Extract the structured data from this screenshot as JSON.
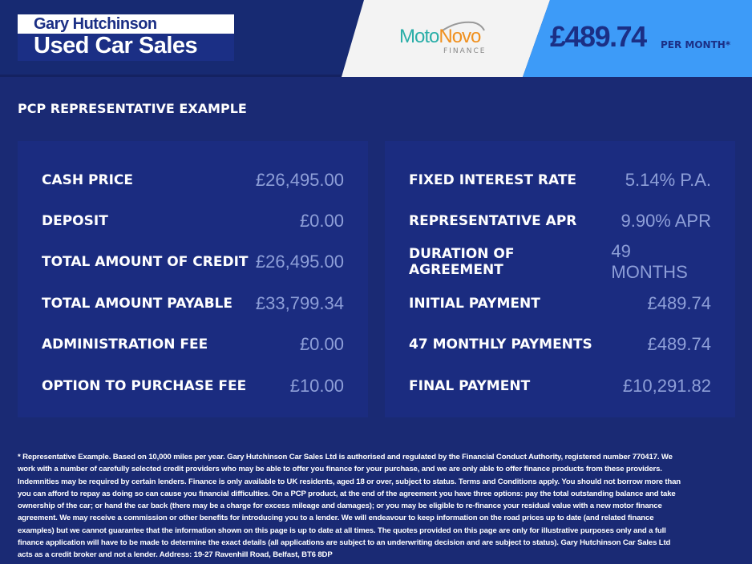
{
  "header": {
    "dealer_line1": "Gary Hutchinson",
    "dealer_line2": "Used Car Sales",
    "finance_logo_a": "Moto",
    "finance_logo_b": "Novo",
    "finance_logo_sub": "FINANCE",
    "monthly_price": "£489.74",
    "monthly_unit": "PER MONTH*",
    "colors": {
      "header": "#172a72",
      "price_bg": "#3d9bf8",
      "logo_teal": "#2aaea8",
      "logo_orange": "#f0901e"
    }
  },
  "title": "PCP REPRESENTATIVE EXAMPLE",
  "left_panel": [
    {
      "label": "CASH PRICE",
      "value": "£26,495.00"
    },
    {
      "label": "DEPOSIT",
      "value": "£0.00"
    },
    {
      "label": "TOTAL AMOUNT OF CREDIT",
      "value": "£26,495.00"
    },
    {
      "label": "TOTAL AMOUNT PAYABLE",
      "value": "£33,799.34"
    },
    {
      "label": "ADMINISTRATION FEE",
      "value": "£0.00"
    },
    {
      "label": "OPTION TO PURCHASE FEE",
      "value": "£10.00"
    }
  ],
  "right_panel": [
    {
      "label": "FIXED INTEREST RATE",
      "value": "5.14% P.A."
    },
    {
      "label": "REPRESENTATIVE APR",
      "value": "9.90% APR"
    },
    {
      "label": "DURATION OF AGREEMENT",
      "value": "49 MONTHS"
    },
    {
      "label": "INITIAL PAYMENT",
      "value": "£489.74"
    },
    {
      "label": "47 MONTHLY PAYMENTS",
      "value": "£489.74"
    },
    {
      "label": "FINAL PAYMENT",
      "value": "£10,291.82"
    }
  ],
  "footer": "* Representative Example. Based on 10,000 miles per year. Gary Hutchinson Car Sales Ltd is authorised and regulated by the Financial Conduct Authority, registered number 770417. We work with a number of carefully selected credit providers who may be able to offer you finance for your purchase, and we are only able to offer finance products from these providers. Indemnities may be required by certain lenders. Finance is only available to UK residents, aged 18 or over, subject to status. Terms and Conditions apply. You should not borrow more than you can afford to repay as doing so can cause you financial difficulties. On a PCP product, at the end of the agreement you have three options: pay the total outstanding balance and take ownership of the car; or hand the car back (there may be a charge for excess mileage and damages); or you may be eligible to re-finance your residual value with a new motor finance agreement. We may receive a commission or other benefits for introducing you to a lender. We will endeavour to keep information on the road prices up to date (and related finance examples) but we cannot guarantee that the information shown on this page is up to date at all times. The quotes provided on this page are only for illustrative purposes only and a full finance application will have to be made to determine the exact details (all applications are subject to an underwriting decision and are subject to status). Gary Hutchinson Car Sales Ltd acts as a credit broker and not a lender. Address: 19-27 Ravenhill Road, Belfast, BT6 8DP"
}
